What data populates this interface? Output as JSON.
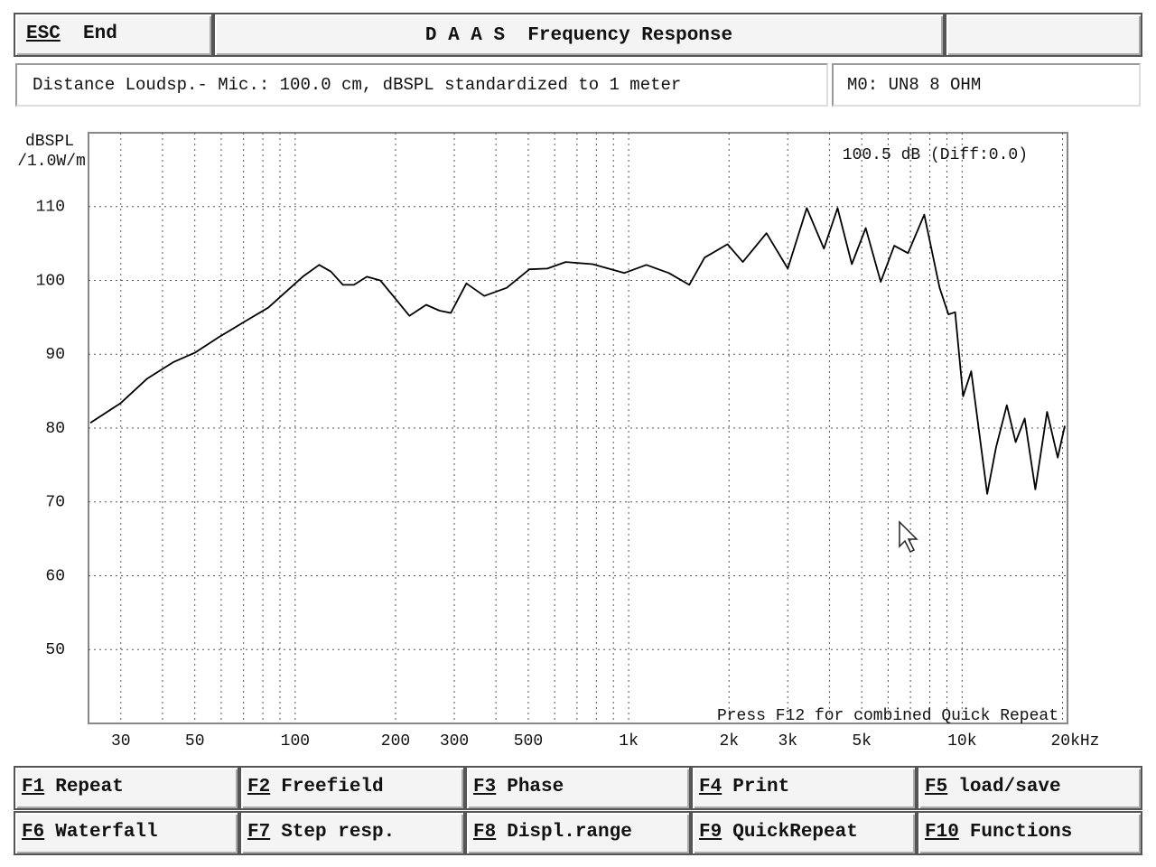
{
  "header": {
    "esc": "ESC",
    "end": "End",
    "title": "D A A S  Frequency Response"
  },
  "info": {
    "text": "Distance Loudsp.- Mic.: 100.0 cm, dBSPL standardized to 1 meter",
    "model": "M0: UN8 8 OHM"
  },
  "chart_data": {
    "type": "line",
    "ylabel": "dBSPL",
    "ylabel_unit": "/1.0W/m",
    "annotations": [
      "100.5 dB (Diff:0.0)",
      "Press F12 for combined Quick Repeat"
    ],
    "log_x": true,
    "grid": true,
    "color": "#000000",
    "xlim": [
      24,
      20700
    ],
    "ylim": [
      40,
      120
    ],
    "xticks": [
      30,
      50,
      100,
      200,
      300,
      500,
      {
        "value": 1000,
        "label": "1k"
      },
      {
        "value": 2000,
        "label": "2k"
      },
      {
        "value": 3000,
        "label": "3k"
      },
      {
        "value": 5000,
        "label": "5k"
      },
      {
        "value": 10000,
        "label": "10k"
      },
      {
        "value": 20000,
        "label": "20kHz"
      }
    ],
    "xgrid": [
      30,
      40,
      50,
      60,
      70,
      80,
      90,
      100,
      200,
      300,
      400,
      500,
      600,
      700,
      800,
      900,
      1000,
      2000,
      3000,
      4000,
      5000,
      6000,
      7000,
      8000,
      9000,
      10000,
      20000
    ],
    "yticks": [
      50,
      60,
      70,
      80,
      90,
      100,
      110
    ],
    "x": [
      24.3,
      30,
      36,
      43,
      50,
      59,
      71,
      83,
      94,
      106,
      118,
      128,
      139,
      150,
      164,
      180,
      200,
      220,
      247,
      271,
      293,
      326,
      369,
      431,
      504,
      570,
      647,
      780,
      970,
      1130,
      1320,
      1520,
      1690,
      1980,
      2200,
      2590,
      3000,
      3420,
      3850,
      4230,
      4670,
      5140,
      5700,
      6260,
      6880,
      7700,
      8560,
      9100,
      9530,
      10070,
      10650,
      11890,
      12640,
      13610,
      14470,
      15400,
      16580,
      17980,
      19350,
      20320
    ],
    "values": [
      80.7,
      83.4,
      86.7,
      88.9,
      90.2,
      92.3,
      94.5,
      96.3,
      98.5,
      100.6,
      102.1,
      101.2,
      99.4,
      99.4,
      100.5,
      100,
      97.5,
      95.2,
      96.7,
      95.9,
      95.6,
      99.6,
      97.9,
      99,
      101.5,
      101.6,
      102.5,
      102.2,
      101,
      102.1,
      101,
      99.4,
      103.1,
      104.9,
      102.5,
      106.4,
      101.6,
      109.8,
      104.3,
      109.8,
      102.2,
      107.1,
      99.8,
      104.7,
      103.7,
      108.9,
      99,
      95.4,
      95.7,
      84.3,
      87.7,
      71.1,
      77.4,
      83.1,
      78.1,
      81.3,
      71.7,
      82.2,
      76,
      80.3
    ]
  },
  "fkeys": [
    {
      "key": "F1",
      "label": "Repeat"
    },
    {
      "key": "F2",
      "label": "Freefield"
    },
    {
      "key": "F3",
      "label": "Phase"
    },
    {
      "key": "F4",
      "label": "Print"
    },
    {
      "key": "F5",
      "label": "load/save"
    },
    {
      "key": "F6",
      "label": "Waterfall"
    },
    {
      "key": "F7",
      "label": "Step resp."
    },
    {
      "key": "F8",
      "label": "Displ.range"
    },
    {
      "key": "F9",
      "label": "QuickRepeat"
    },
    {
      "key": "F10",
      "label": "Functions"
    }
  ]
}
